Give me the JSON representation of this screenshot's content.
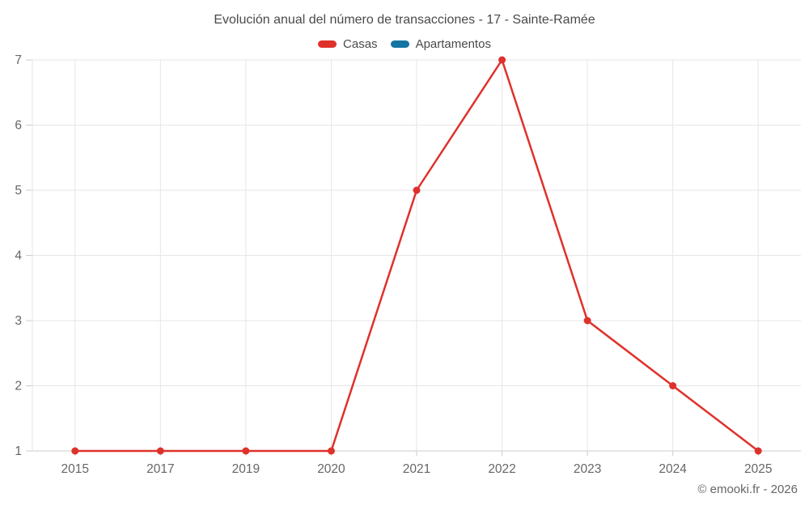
{
  "chart_data": {
    "type": "line",
    "title": "Evolución anual del número de transacciones - 17 - Sainte-Ramée",
    "categories": [
      "2015",
      "2017",
      "2019",
      "2020",
      "2021",
      "2022",
      "2023",
      "2024",
      "2025"
    ],
    "series": [
      {
        "name": "Casas",
        "color": "#df312b",
        "values": [
          1,
          1,
          1,
          1,
          5,
          7,
          3,
          2,
          1
        ]
      },
      {
        "name": "Apartamentos",
        "color": "#1474a4",
        "values": []
      }
    ],
    "xlabel": "",
    "ylabel": "",
    "ylim": [
      1,
      7
    ],
    "yticks": [
      1,
      2,
      3,
      4,
      5,
      6,
      7
    ],
    "grid": true,
    "legend_position": "top",
    "marker": "circle"
  },
  "footer": {
    "credit": "© emooki.fr - 2026"
  },
  "colors": {
    "grid": "#e6e6e6",
    "axis": "#cccccc",
    "tick_text": "#666666",
    "title_text": "#4a4a4a"
  }
}
